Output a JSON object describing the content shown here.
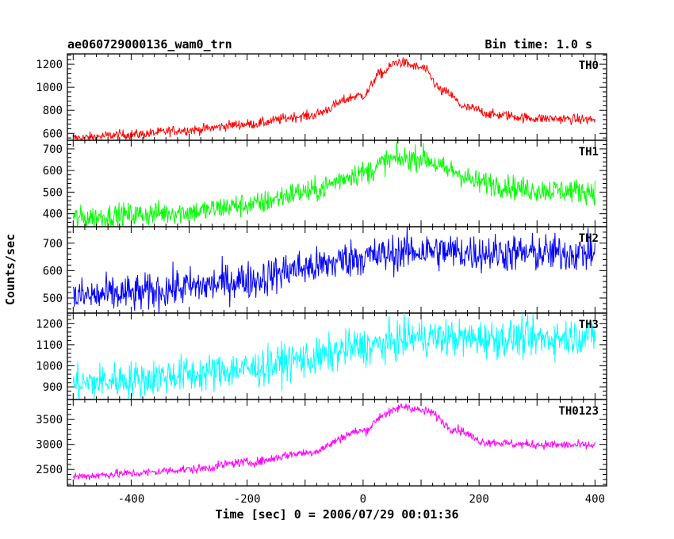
{
  "chart_data": {
    "type": "line",
    "title": "ae060729000136_wam0_trn",
    "bin_time": "Bin time: 1.0 s",
    "xlabel": "Time [sec] 0 = 2006/07/29 00:01:36",
    "ylabel": "Counts/sec",
    "xlim": [
      -510,
      420
    ],
    "x_ticks": [
      "-400",
      "-200",
      "0",
      "200",
      "400"
    ],
    "x_tick_values": [
      -400,
      -200,
      0,
      200,
      400
    ],
    "bin_seconds": 1.0,
    "x_range": [
      -500,
      400
    ],
    "series": [
      {
        "name": "TH0",
        "color": "#ff0000",
        "ylim": [
          540,
          1290
        ],
        "y_ticks": [
          "600",
          "800",
          "1000",
          "1200"
        ],
        "y_tick_values": [
          600,
          800,
          1000,
          1200
        ],
        "noise": 22,
        "profile": [
          [
            -500,
            560
          ],
          [
            -400,
            590
          ],
          [
            -300,
            630
          ],
          [
            -200,
            680
          ],
          [
            -100,
            750
          ],
          [
            0,
            930
          ],
          [
            30,
            1120
          ],
          [
            60,
            1220
          ],
          [
            100,
            1170
          ],
          [
            140,
            960
          ],
          [
            180,
            820
          ],
          [
            230,
            760
          ],
          [
            300,
            730
          ],
          [
            400,
            720
          ]
        ]
      },
      {
        "name": "TH1",
        "color": "#00ff00",
        "ylim": [
          340,
          740
        ],
        "y_ticks": [
          "400",
          "500",
          "600",
          "700"
        ],
        "y_tick_values": [
          400,
          500,
          600,
          700
        ],
        "noise": 28,
        "profile": [
          [
            -500,
            380
          ],
          [
            -400,
            395
          ],
          [
            -300,
            410
          ],
          [
            -200,
            440
          ],
          [
            -100,
            500
          ],
          [
            0,
            590
          ],
          [
            50,
            650
          ],
          [
            100,
            660
          ],
          [
            150,
            600
          ],
          [
            200,
            545
          ],
          [
            300,
            510
          ],
          [
            400,
            505
          ]
        ]
      },
      {
        "name": "TH2",
        "color": "#0000ff",
        "ylim": [
          445,
          760
        ],
        "y_ticks": [
          "500",
          "600",
          "700"
        ],
        "y_tick_values": [
          500,
          600,
          700
        ],
        "noise": 35,
        "profile": [
          [
            -500,
            505
          ],
          [
            -400,
            515
          ],
          [
            -300,
            540
          ],
          [
            -200,
            565
          ],
          [
            -100,
            610
          ],
          [
            0,
            650
          ],
          [
            100,
            672
          ],
          [
            200,
            665
          ],
          [
            300,
            662
          ],
          [
            400,
            665
          ]
        ]
      },
      {
        "name": "TH3",
        "color": "#00ffff",
        "ylim": [
          840,
          1250
        ],
        "y_ticks": [
          "900",
          "1000",
          "1100",
          "1200"
        ],
        "y_tick_values": [
          900,
          1000,
          1100,
          1200
        ],
        "noise": 45,
        "profile": [
          [
            -500,
            915
          ],
          [
            -400,
            935
          ],
          [
            -300,
            960
          ],
          [
            -200,
            985
          ],
          [
            -100,
            1030
          ],
          [
            0,
            1090
          ],
          [
            100,
            1135
          ],
          [
            200,
            1130
          ],
          [
            300,
            1130
          ],
          [
            400,
            1145
          ]
        ]
      },
      {
        "name": "TH0123",
        "color": "#ff00ff",
        "ylim": [
          2170,
          3900
        ],
        "y_ticks": [
          "2500",
          "3000",
          "3500"
        ],
        "y_tick_values": [
          2500,
          3000,
          3500
        ],
        "noise": 45,
        "profile": [
          [
            -500,
            2360
          ],
          [
            -400,
            2420
          ],
          [
            -300,
            2500
          ],
          [
            -200,
            2640
          ],
          [
            -100,
            2830
          ],
          [
            0,
            3270
          ],
          [
            40,
            3620
          ],
          [
            70,
            3760
          ],
          [
            110,
            3660
          ],
          [
            160,
            3300
          ],
          [
            210,
            3050
          ],
          [
            280,
            3000
          ],
          [
            400,
            2980
          ]
        ]
      }
    ]
  }
}
